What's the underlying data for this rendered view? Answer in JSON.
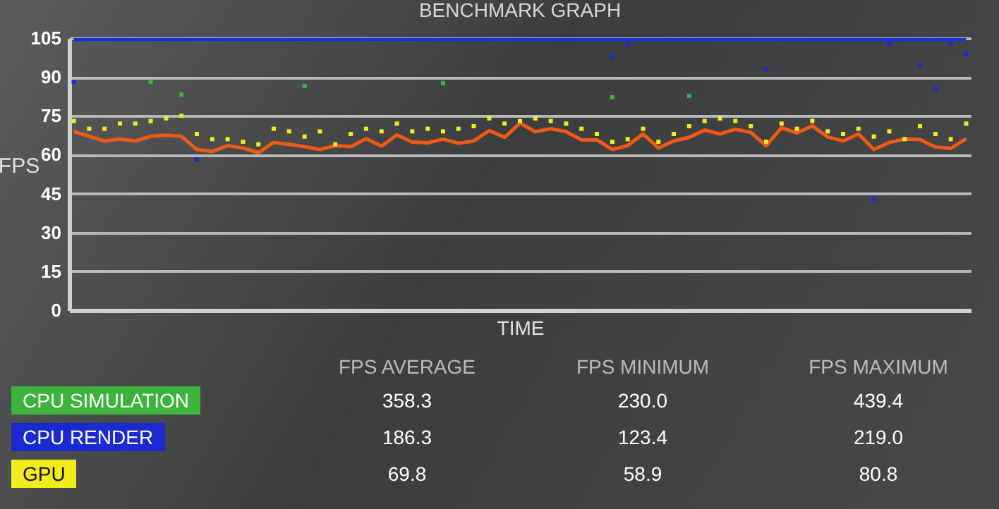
{
  "chart_data": {
    "type": "line",
    "title": "BENCHMARK GRAPH",
    "xlabel": "TIME",
    "ylabel": "FPS",
    "categories": [
      null,
      null,
      null,
      null,
      null,
      null,
      null,
      null,
      null,
      null,
      null,
      null,
      null,
      null,
      null,
      null,
      null,
      null,
      null,
      null,
      null,
      null,
      null,
      null,
      null,
      null,
      null,
      null,
      null,
      null,
      null,
      null,
      null,
      null,
      null,
      null,
      null,
      null,
      null,
      null,
      null,
      null,
      null,
      null,
      null,
      null,
      null,
      null,
      null,
      null,
      null,
      null,
      null,
      null,
      null,
      null,
      null,
      null,
      null
    ],
    "ylim": [
      0,
      105
    ],
    "yticks": [
      0,
      15,
      30,
      45,
      60,
      75,
      90,
      105
    ],
    "grid": "y",
    "tick_labels": "y",
    "legend": "bottom",
    "series": [
      {
        "color": "#1430e0",
        "values": [
          104.5,
          104.5,
          104.5,
          104.5,
          104.5,
          104.5,
          104.5,
          104.5,
          104.5,
          104.5,
          104.5,
          104.5,
          104.5,
          104.5,
          104.5,
          104.5,
          104.5,
          104.5,
          104.5,
          104.5,
          104.5,
          104.5,
          104.5,
          104.5,
          104.5,
          104.5,
          104.5,
          104.5,
          104.5,
          104.5,
          104.5,
          104.5,
          104.5,
          104.5,
          104.5,
          104.5,
          104.5,
          104.5,
          104.5,
          104.5,
          104.5,
          104.5,
          104.5,
          104.5,
          104.5,
          104.5,
          104.5,
          104.5,
          104.5,
          104.5,
          104.5,
          104.5,
          104.5,
          104.5,
          104.5,
          104.5,
          104.5,
          104.5,
          104.5
        ]
      },
      {
        "color": "#f05a14",
        "values": [
          69.0,
          67.1,
          65.3,
          66.0,
          65.3,
          67.1,
          67.5,
          67.1,
          62.0,
          61.3,
          63.5,
          62.6,
          60.8,
          64.7,
          64.0,
          63.1,
          62.0,
          63.5,
          63.1,
          66.2,
          63.3,
          67.6,
          64.9,
          64.6,
          66.0,
          64.4,
          65.3,
          69.3,
          66.7,
          72.2,
          68.9,
          70.0,
          68.9,
          65.7,
          65.7,
          62.0,
          63.5,
          68.0,
          62.6,
          65.3,
          66.7,
          69.5,
          68.0,
          69.8,
          68.6,
          63.5,
          70.4,
          68.4,
          71.1,
          66.8,
          65.3,
          68.0,
          62.0,
          64.7,
          66.0,
          65.8,
          63.0,
          62.4,
          66.2
        ]
      },
      {
        "name": "CPU SIMULATION",
        "type": "scatter",
        "marker": "square",
        "color": "#3cb43c",
        "values": [
          null,
          null,
          null,
          null,
          null,
          88.1,
          null,
          83.2,
          null,
          null,
          null,
          null,
          null,
          null,
          null,
          86.5,
          null,
          null,
          null,
          null,
          null,
          null,
          null,
          null,
          87.6,
          null,
          null,
          null,
          null,
          null,
          null,
          null,
          null,
          null,
          null,
          82.2,
          null,
          null,
          null,
          null,
          82.7,
          null,
          null,
          null,
          null,
          null,
          null,
          null,
          null,
          null,
          null,
          null,
          null,
          null,
          null,
          null,
          null,
          null,
          null
        ]
      },
      {
        "name": "CPU RENDER",
        "type": "scatter",
        "marker": "square",
        "color": "#1a2ad0",
        "values": [
          88.1,
          null,
          null,
          null,
          null,
          null,
          null,
          null,
          58.2,
          null,
          null,
          null,
          null,
          null,
          null,
          null,
          null,
          null,
          null,
          null,
          null,
          null,
          null,
          null,
          null,
          null,
          null,
          null,
          null,
          null,
          null,
          null,
          null,
          null,
          null,
          97.9,
          102.8,
          null,
          null,
          null,
          null,
          null,
          null,
          null,
          null,
          93.0,
          null,
          null,
          null,
          null,
          null,
          null,
          43.0,
          102.8,
          104.5,
          94.7,
          85.4,
          102.8,
          99.0
        ]
      },
      {
        "name": "GPU",
        "type": "scatter",
        "marker": "square",
        "color": "#f2ec1e",
        "values": [
          73,
          70,
          70,
          72,
          72,
          73,
          74,
          75,
          68,
          66,
          66,
          65,
          64,
          70,
          69,
          67,
          69,
          64,
          68,
          70,
          69,
          72,
          69,
          70,
          69,
          70,
          71,
          74,
          72,
          73,
          74,
          73,
          72,
          70,
          68,
          65,
          66,
          70,
          65,
          68,
          71,
          73,
          74,
          73,
          71,
          65,
          72,
          70,
          73,
          69,
          68,
          70,
          67,
          69,
          66,
          71,
          68,
          66,
          72
        ]
      }
    ],
    "annotations": [
      "FPS AVERAGE",
      "FPS MINIMUM",
      "FPS MAXIMUM",
      "358.3",
      "230.0",
      "439.4",
      "186.3",
      "123.4",
      "219.0",
      "69.8",
      "58.9",
      "80.8"
    ]
  }
}
